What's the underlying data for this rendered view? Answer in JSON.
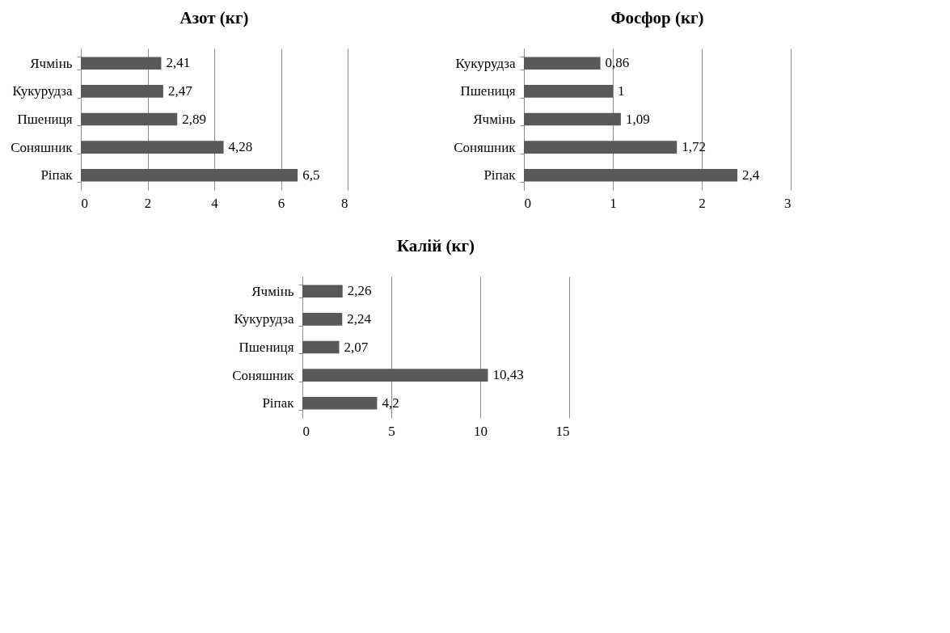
{
  "chart_data": [
    {
      "type": "bar",
      "orientation": "horizontal",
      "title": "Азот (кг)",
      "categories": [
        "Ячмінь",
        "Кукурудза",
        "Пшениця",
        "Соняшник",
        "Ріпак"
      ],
      "values": [
        2.41,
        2.47,
        2.89,
        4.28,
        6.5
      ],
      "value_labels": [
        "2,41",
        "2,47",
        "2,89",
        "4,28",
        "6,5"
      ],
      "color": "#595959",
      "xlim": [
        0,
        8
      ],
      "xticks": [
        0,
        2,
        4,
        6,
        8
      ],
      "grid": "x"
    },
    {
      "type": "bar",
      "orientation": "horizontal",
      "title": "Фосфор (кг)",
      "categories": [
        "Кукурудза",
        "Пшениця",
        "Ячмінь",
        "Соняшник",
        "Ріпак"
      ],
      "values": [
        0.86,
        1,
        1.09,
        1.72,
        2.4
      ],
      "value_labels": [
        "0,86",
        "1",
        "1,09",
        "1,72",
        "2,4"
      ],
      "color": "#595959",
      "xlim": [
        0,
        3
      ],
      "xticks": [
        0,
        1,
        2,
        3
      ],
      "grid": "x"
    },
    {
      "type": "bar",
      "orientation": "horizontal",
      "title": "Калій (кг)",
      "categories": [
        "Ячмінь",
        "Кукурудза",
        "Пшениця",
        "Соняшник",
        "Ріпак"
      ],
      "values": [
        2.26,
        2.24,
        2.07,
        10.43,
        4.2
      ],
      "value_labels": [
        "2,26",
        "2,24",
        "2,07",
        "10,43",
        "4,2"
      ],
      "color": "#595959",
      "xlim": [
        0,
        15
      ],
      "xticks": [
        0,
        5,
        10,
        15
      ],
      "grid": "x"
    }
  ]
}
